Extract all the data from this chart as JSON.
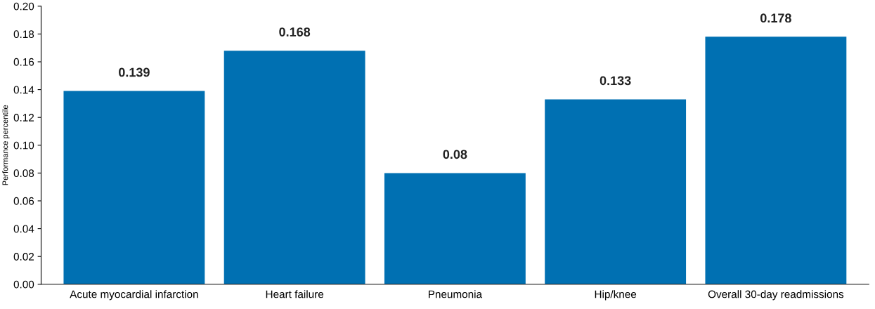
{
  "chart_data": {
    "type": "bar",
    "ylabel": "Performance percentile",
    "categories": [
      "Acute myocardial infarction",
      "Heart failure",
      "Pneumonia",
      "Hip/knee",
      "Overall 30-day readmissions"
    ],
    "values": [
      0.139,
      0.168,
      0.08,
      0.133,
      0.178
    ],
    "color": "#0070b2",
    "ylim": [
      0,
      0.2
    ],
    "yticks": [
      {
        "value": 0,
        "label": "0.00"
      },
      {
        "value": 0.02,
        "label": "0.02"
      },
      {
        "value": 0.04,
        "label": "0.04"
      },
      {
        "value": 0.06,
        "label": "0.06"
      },
      {
        "value": 0.08,
        "label": "0.08"
      },
      {
        "value": 0.1,
        "label": "0.10"
      },
      {
        "value": 0.12,
        "label": "0.12"
      },
      {
        "value": 0.14,
        "label": "0.14"
      },
      {
        "value": 0.16,
        "label": "0.16"
      },
      {
        "value": 0.18,
        "label": "0.18"
      },
      {
        "value": 0.2,
        "label": "0.20"
      }
    ],
    "data_labels": true,
    "grid": false,
    "legend": false
  }
}
